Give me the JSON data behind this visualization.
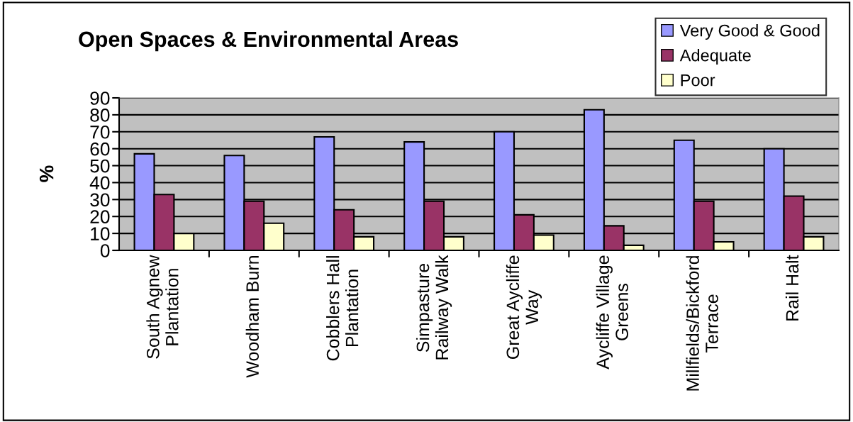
{
  "chart_data": {
    "type": "bar",
    "title": "Open Spaces & Environmental Areas",
    "ylabel": "%",
    "categories": [
      "South Agnew\nPlantation",
      "Woodham Burn",
      "Cobblers Hall\nPlantation",
      "Simpasture\nRailway Walk",
      "Great Aycliffe\nWay",
      "Aycliffe Village\nGreens",
      "Millfields/Bickford\nTerrace",
      "Rail Halt"
    ],
    "series": [
      {
        "name": "Very Good & Good",
        "color": "#9999ff",
        "values": [
          57,
          56,
          67,
          64,
          70,
          83,
          65,
          60
        ]
      },
      {
        "name": "Adequate",
        "color": "#993366",
        "values": [
          33,
          29,
          24,
          29,
          21,
          14.5,
          29,
          32
        ]
      },
      {
        "name": "Poor",
        "color": "#ffffcc",
        "values": [
          10,
          16,
          8,
          8,
          9,
          3,
          5,
          8
        ]
      }
    ],
    "ylim": [
      0,
      90
    ],
    "yticks": [
      0,
      10,
      20,
      30,
      40,
      50,
      60,
      70,
      80,
      90
    ],
    "grid": "y",
    "legend": "top right"
  }
}
